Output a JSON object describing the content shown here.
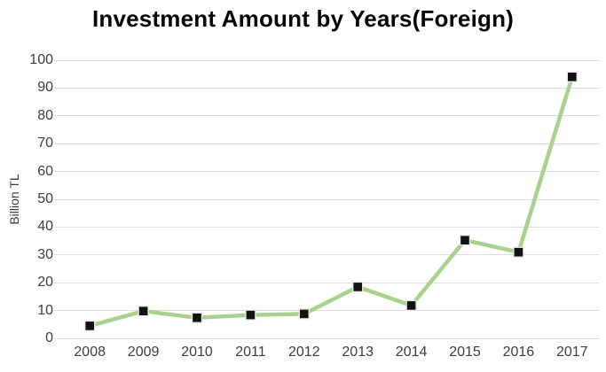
{
  "title": "Investment Amount by Years(Foreign)",
  "chart_data": {
    "type": "line",
    "title": "Investment Amount by Years(Foreign)",
    "xlabel": "",
    "ylabel": "Billion TL",
    "categories": [
      "2008",
      "2009",
      "2010",
      "2011",
      "2012",
      "2013",
      "2014",
      "2015",
      "2016",
      "2017"
    ],
    "values": [
      4.5,
      9.8,
      7.4,
      8.4,
      8.8,
      18.5,
      11.8,
      35.3,
      31,
      94
    ],
    "ylim": [
      0,
      100
    ],
    "yticks": [
      0,
      10,
      20,
      30,
      40,
      50,
      60,
      70,
      80,
      90,
      100
    ],
    "grid": "horizontal-only",
    "legend": "none",
    "line_color": "#a9d18e",
    "marker_shape": "square",
    "marker_fill": "#121212",
    "marker_outline": "#e9e9e9",
    "gridline_color": "#dcdcdc",
    "tick_label_color": "#3d3d3d",
    "title_color": "#050505"
  }
}
